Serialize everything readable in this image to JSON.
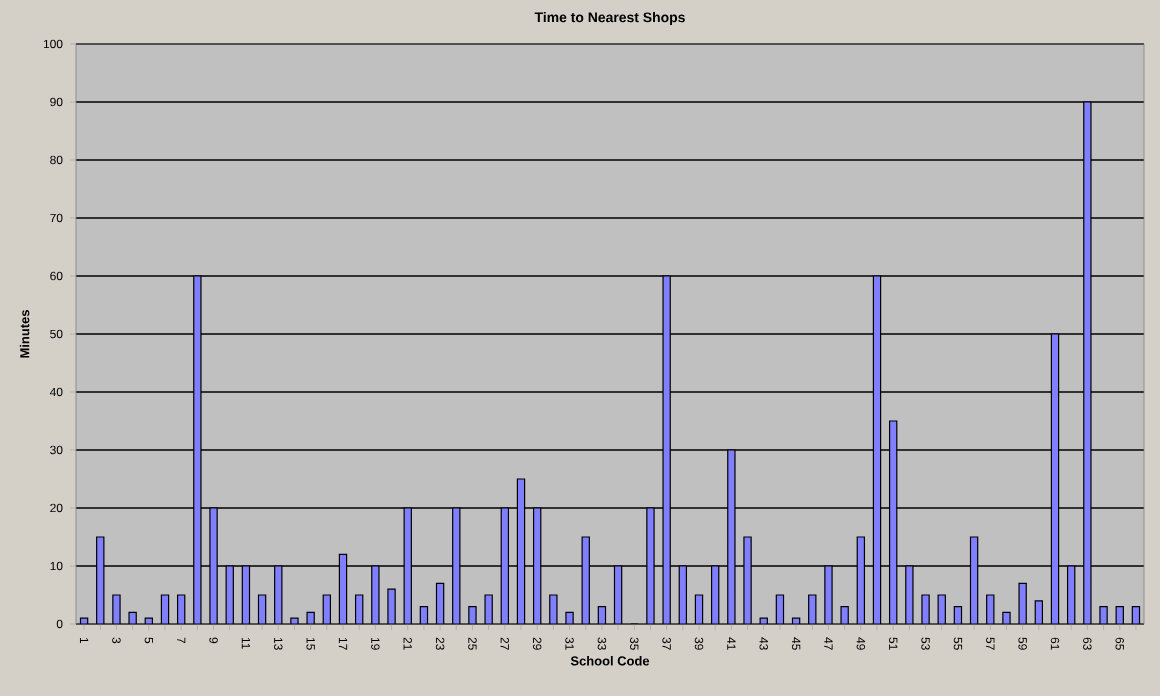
{
  "chart_data": {
    "type": "bar",
    "title": "Time to Nearest Shops",
    "xlabel": "School Code",
    "ylabel": "Minutes",
    "categories": [
      "1",
      null,
      "3",
      null,
      "5",
      null,
      "7",
      null,
      "9",
      null,
      "11",
      null,
      "13",
      null,
      "15",
      null,
      "17",
      null,
      "19",
      null,
      "21",
      null,
      "23",
      null,
      "25",
      null,
      "27",
      null,
      "29",
      null,
      "31",
      null,
      "33",
      null,
      "35",
      null,
      "37",
      null,
      "39",
      null,
      "41",
      null,
      "43",
      null,
      "45",
      null,
      "47",
      null,
      "49",
      null,
      "51",
      null,
      "53",
      null,
      "55",
      null,
      "57",
      null,
      "59",
      null,
      "61",
      null,
      "63",
      null,
      "65",
      null
    ],
    "values": [
      1,
      15,
      5,
      2,
      1,
      5,
      5,
      60,
      20,
      10,
      10,
      5,
      10,
      1,
      2,
      5,
      12,
      5,
      10,
      6,
      20,
      3,
      7,
      20,
      3,
      5,
      20,
      25,
      20,
      5,
      2,
      15,
      3,
      10,
      0,
      20,
      60,
      10,
      5,
      10,
      30,
      15,
      1,
      5,
      1,
      5,
      10,
      3,
      15,
      60,
      35,
      10,
      5,
      5,
      3,
      15,
      5,
      2,
      7,
      4,
      50,
      10,
      90,
      3,
      3,
      3
    ],
    "color": "#8080ff",
    "ylim": [
      0,
      100
    ],
    "yticks": [
      0,
      10,
      20,
      30,
      40,
      50,
      60,
      70,
      80,
      90,
      100
    ],
    "grid": "y"
  }
}
